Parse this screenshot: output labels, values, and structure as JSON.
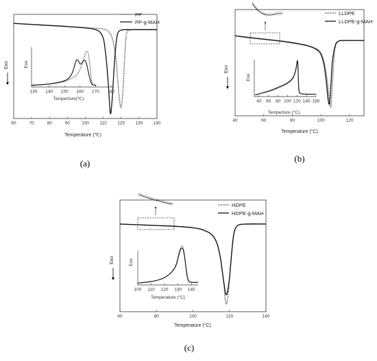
{
  "chart_data": [
    {
      "panel": "(a)",
      "type": "line",
      "xlabel": "Temperature (℃)",
      "ylabel": "Exo",
      "xlim": [
        60,
        140
      ],
      "xticks": [
        60,
        70,
        80,
        90,
        100,
        110,
        120,
        130,
        140
      ],
      "series": [
        {
          "name": "PP",
          "style": "dotted",
          "x": [
            60,
            70,
            80,
            90,
            100,
            110,
            113,
            115,
            117,
            118,
            119,
            120,
            121,
            122,
            123,
            125,
            130,
            140
          ],
          "y": [
            0,
            -0.05,
            -0.1,
            -0.15,
            -0.2,
            -0.27,
            -0.4,
            -0.7,
            -1.6,
            -2.6,
            -3.6,
            -4.0,
            -3.2,
            -1.6,
            -0.5,
            -0.32,
            -0.3,
            -0.3
          ]
        },
        {
          "name": "PP-g-MAH",
          "style": "solid",
          "x": [
            60,
            70,
            80,
            90,
            100,
            105,
            108,
            110,
            111,
            112,
            113,
            114,
            115,
            116,
            117,
            118,
            120,
            125,
            130,
            140
          ],
          "y": [
            0,
            -0.05,
            -0.1,
            -0.15,
            -0.22,
            -0.28,
            -0.4,
            -0.7,
            -1.2,
            -2.0,
            -3.1,
            -4.3,
            -3.6,
            -2.2,
            -1.1,
            -0.5,
            -0.32,
            -0.3,
            -0.3,
            -0.3
          ]
        }
      ],
      "inset": {
        "xlabel": "Temperture(℃)",
        "ylabel": "Exo",
        "xlim": [
          130,
          180
        ],
        "xticks": [
          130,
          140,
          150,
          160,
          170,
          180
        ],
        "series": [
          {
            "name": "PP",
            "style": "dotted",
            "x": [
              130,
              140,
              150,
              155,
              158,
              160,
              162,
              163,
              164,
              165,
              166,
              167,
              168,
              170
            ],
            "y": [
              0,
              0.03,
              0.1,
              0.2,
              0.3,
              0.45,
              0.7,
              0.85,
              0.95,
              0.9,
              0.6,
              0.2,
              0.02,
              0
            ]
          },
          {
            "name": "PP-g-MAH",
            "style": "solid",
            "x": [
              130,
              140,
              150,
              154,
              156,
              157,
              158,
              159,
              160,
              161,
              162,
              163,
              164,
              165,
              166,
              167,
              168,
              170
            ],
            "y": [
              0,
              0.03,
              0.12,
              0.25,
              0.45,
              0.62,
              0.72,
              0.68,
              0.6,
              0.62,
              0.68,
              0.7,
              0.6,
              0.4,
              0.2,
              0.05,
              0.01,
              0
            ]
          }
        ]
      }
    },
    {
      "panel": "(b)",
      "type": "line",
      "xlabel": "Temperature (°C)",
      "ylabel": "Exo",
      "xlim": [
        40,
        130
      ],
      "xticks": [
        40,
        60,
        80,
        100,
        120
      ],
      "series": [
        {
          "name": "LLDPE",
          "style": "dotted",
          "x": [
            40,
            50,
            60,
            70,
            80,
            90,
            95,
            98,
            100,
            102,
            104,
            105,
            106,
            107,
            108,
            109,
            110,
            112,
            115,
            120,
            130
          ],
          "y": [
            0,
            -0.1,
            -0.2,
            -0.3,
            -0.42,
            -0.6,
            -0.75,
            -0.9,
            -1.1,
            -1.6,
            -2.6,
            -3.4,
            -4.2,
            -4.5,
            -3.0,
            -1.5,
            -0.7,
            -0.35,
            -0.3,
            -0.3,
            -0.3
          ]
        },
        {
          "name": "LLDPE-g-MAH",
          "style": "solid",
          "x": [
            40,
            50,
            60,
            70,
            80,
            90,
            95,
            98,
            100,
            102,
            103,
            104,
            105,
            106,
            107,
            108,
            110,
            112,
            115,
            120,
            130
          ],
          "y": [
            0,
            -0.12,
            -0.22,
            -0.32,
            -0.45,
            -0.62,
            -0.78,
            -0.95,
            -1.2,
            -1.8,
            -2.4,
            -3.2,
            -4.1,
            -4.3,
            -3.0,
            -1.6,
            -0.6,
            -0.35,
            -0.3,
            -0.3,
            -0.3
          ]
        }
      ],
      "inset": {
        "xlabel": "Temperture (°C)",
        "ylabel": "Exo",
        "xlim": [
          30,
          160
        ],
        "xticks": [
          40,
          60,
          80,
          100,
          120,
          140,
          160
        ],
        "series": [
          {
            "name": "LLDPE",
            "style": "dotted",
            "x": [
              32,
              50,
              70,
              90,
              100,
              110,
              115,
              118,
              120,
              121,
              122,
              123,
              124,
              126,
              130,
              140,
              150,
              160
            ],
            "y": [
              0,
              0.06,
              0.14,
              0.26,
              0.33,
              0.45,
              0.6,
              0.75,
              0.9,
              0.98,
              0.8,
              0.4,
              0.15,
              0.05,
              0.03,
              0.02,
              0.02,
              0.02
            ]
          },
          {
            "name": "LLDPE-g-MAH",
            "style": "solid",
            "x": [
              32,
              50,
              70,
              90,
              100,
              110,
              115,
              118,
              120,
              121,
              122,
              123,
              124,
              126,
              130,
              140,
              150,
              160
            ],
            "y": [
              0,
              0.07,
              0.16,
              0.28,
              0.35,
              0.47,
              0.62,
              0.78,
              0.95,
              1.0,
              0.82,
              0.4,
              0.14,
              0.05,
              0.03,
              0.02,
              0.02,
              0.02
            ]
          }
        ]
      }
    },
    {
      "panel": "(c)",
      "type": "line",
      "xlabel": "Temperature (°C)",
      "ylabel": "Exo",
      "xlim": [
        60,
        140
      ],
      "xticks": [
        60,
        80,
        100,
        120,
        140
      ],
      "series": [
        {
          "name": "HDPE",
          "style": "dotted",
          "x": [
            60,
            70,
            80,
            90,
            100,
            105,
            110,
            113,
            115,
            116,
            117,
            118,
            119,
            120,
            121,
            122,
            123,
            125,
            130,
            140
          ],
          "y": [
            0,
            -0.04,
            -0.08,
            -0.12,
            -0.2,
            -0.3,
            -0.55,
            -1.0,
            -1.8,
            -2.5,
            -3.3,
            -4.3,
            -4.0,
            -3.0,
            -1.8,
            -0.8,
            -0.3,
            -0.05,
            0,
            0
          ]
        },
        {
          "name": "HDPE-g-MAH",
          "style": "solid",
          "x": [
            60,
            70,
            80,
            90,
            100,
            105,
            110,
            113,
            115,
            116,
            117,
            118,
            119,
            120,
            121,
            122,
            123,
            125,
            130,
            140
          ],
          "y": [
            0,
            -0.04,
            -0.08,
            -0.12,
            -0.2,
            -0.3,
            -0.55,
            -1.0,
            -1.8,
            -2.5,
            -3.2,
            -3.8,
            -3.6,
            -2.9,
            -1.8,
            -0.8,
            -0.3,
            -0.05,
            0,
            0
          ]
        }
      ],
      "inset": {
        "xlabel": "Temperature (°C)",
        "ylabel": "Exo",
        "xlim": [
          100,
          145
        ],
        "xticks": [
          100,
          110,
          120,
          130,
          140
        ],
        "series": [
          {
            "name": "HDPE",
            "style": "dotted",
            "x": [
              100,
              110,
              115,
              120,
              124,
              127,
              129,
              130,
              131,
              132,
              133,
              134,
              135,
              136,
              137,
              138,
              140,
              145
            ],
            "y": [
              0,
              0.04,
              0.08,
              0.15,
              0.25,
              0.38,
              0.55,
              0.7,
              0.85,
              0.95,
              1.0,
              0.92,
              0.7,
              0.42,
              0.18,
              0.06,
              0.02,
              0.02
            ]
          },
          {
            "name": "HDPE-g-MAH",
            "style": "solid",
            "x": [
              100,
              110,
              115,
              120,
              124,
              127,
              129,
              130,
              131,
              132,
              133,
              134,
              135,
              136,
              137,
              138,
              140,
              145
            ],
            "y": [
              0,
              0.04,
              0.08,
              0.15,
              0.25,
              0.37,
              0.52,
              0.66,
              0.8,
              0.9,
              0.94,
              0.88,
              0.68,
              0.4,
              0.16,
              0.05,
              0.02,
              0.02
            ]
          }
        ]
      }
    }
  ]
}
